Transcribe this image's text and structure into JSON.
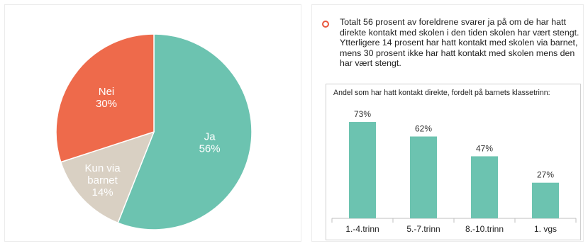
{
  "summary": {
    "text": "Totalt 56 prosent av foreldrene svarer ja på om de har hatt direkte kontakt med skolen i den tiden skolen har vært stengt. Ytterligere 14 prosent har hatt kontakt med skolen via barnet, mens 30  prosent ikke har hatt kontakt med skolen mens den har vært stengt."
  },
  "colors": {
    "teal": "#6cc3b0",
    "red": "#ee6a4b",
    "beige": "#d9d0c3",
    "bullet": "#e8573d"
  },
  "chart_data": [
    {
      "type": "pie",
      "slices": [
        {
          "label": "Ja",
          "value": 56,
          "value_label": "56%",
          "color": "#6cc3b0"
        },
        {
          "label": "Kun via barnet",
          "value": 14,
          "value_label": "14%",
          "color": "#d9d0c3"
        },
        {
          "label": "Nei",
          "value": 30,
          "value_label": "30%",
          "color": "#ee6a4b"
        }
      ]
    },
    {
      "type": "bar",
      "title": "Andel som har hatt kontakt direkte, fordelt på barnets klassetrinn:",
      "categories": [
        "1.-4.trinn",
        "5.-7.trinn",
        "8.-10.trinn",
        "1. vgs"
      ],
      "values": [
        73,
        62,
        47,
        27
      ],
      "value_labels": [
        "73%",
        "62%",
        "47%",
        "27%"
      ],
      "ylim": [
        0,
        100
      ],
      "color": "#6cc3b0",
      "grid": false
    }
  ]
}
